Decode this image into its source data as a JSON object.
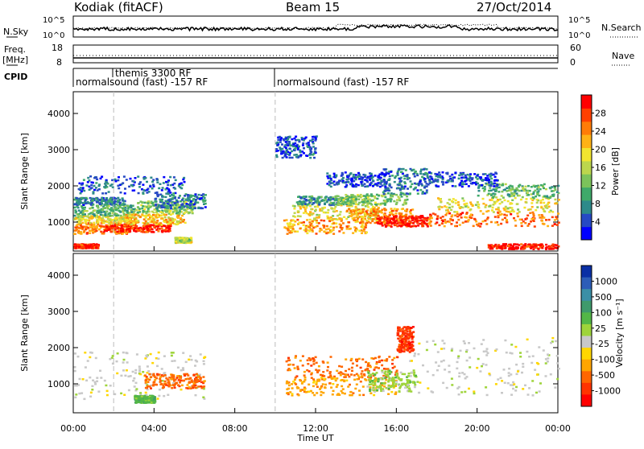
{
  "header": {
    "station": "Kodiak (fitACF)",
    "beam": "Beam 15",
    "date": "27/Oct/2014"
  },
  "nsky_panel": {
    "left_label": "N.Sky",
    "right_label": "N.Search",
    "left_ticks": [
      "10^5",
      "10^0"
    ],
    "right_ticks": [
      "10^5",
      "10^0"
    ]
  },
  "freq_panel": {
    "left_label_line1": "Freq.",
    "left_label_line2": "[MHz]",
    "right_label": "Nave",
    "left_ticks": [
      "18",
      "8"
    ],
    "right_ticks": [
      "60",
      "0"
    ],
    "left_range": [
      8,
      18
    ],
    "right_range": [
      0,
      60
    ]
  },
  "cpid_panel": {
    "label": "CPID",
    "segments": [
      {
        "start_hour": 0.0,
        "end_hour": 9.9,
        "text": "normalsound (fast) -157 RF"
      },
      {
        "start_hour": 2.0,
        "end_hour": 2.0,
        "text": "themis 3300 RF"
      },
      {
        "start_hour": 9.9,
        "end_hour": 24.0,
        "text": "normalsound (fast) -157 RF"
      }
    ]
  },
  "chart_data": [
    {
      "type": "heatmap",
      "name": "power",
      "ylabel": "Slant Range [km]",
      "xlabel": "",
      "xlim": [
        0,
        24
      ],
      "ylim": [
        200,
        4600
      ],
      "y_ticks": [
        "1000",
        "2000",
        "3000",
        "4000"
      ],
      "y_tick_values": [
        1000,
        2000,
        3000,
        4000
      ],
      "colorbar": {
        "label": "Power [dB]",
        "tick_labels": [
          "4",
          "8",
          "12",
          "16",
          "20",
          "24",
          "28"
        ],
        "tick_values": [
          4,
          8,
          12,
          16,
          20,
          24,
          28
        ],
        "range": [
          2,
          30
        ],
        "colors": [
          "#0000ff",
          "#2649c4",
          "#2d8a8a",
          "#3fa96a",
          "#7cc35b",
          "#bcd64d",
          "#f2e52f",
          "#ffb216",
          "#ff7c07",
          "#ff4000",
          "#ff0000"
        ]
      },
      "regions": [
        {
          "t": [
            0.0,
            1.2
          ],
          "r": [
            300,
            420
          ],
          "v": 28
        },
        {
          "t": [
            0.0,
            2.8
          ],
          "r": [
            700,
            1000
          ],
          "v": 24
        },
        {
          "t": [
            0.0,
            3.0
          ],
          "r": [
            1000,
            1200
          ],
          "v": 18
        },
        {
          "t": [
            0.0,
            3.0
          ],
          "r": [
            1200,
            1500
          ],
          "v": 12
        },
        {
          "t": [
            0.0,
            2.5
          ],
          "r": [
            1500,
            1700
          ],
          "v": 8
        },
        {
          "t": [
            1.5,
            4.8
          ],
          "r": [
            750,
            950
          ],
          "v": 28
        },
        {
          "t": [
            2.5,
            5.5
          ],
          "r": [
            950,
            1250
          ],
          "v": 20
        },
        {
          "t": [
            3.0,
            6.0
          ],
          "r": [
            1250,
            1600
          ],
          "v": 14
        },
        {
          "t": [
            4.0,
            6.5
          ],
          "r": [
            1400,
            1800
          ],
          "v": 8
        },
        {
          "t": [
            5.0,
            5.8
          ],
          "r": [
            450,
            600
          ],
          "v": 16
        },
        {
          "t": [
            0.2,
            5.5
          ],
          "r": [
            1800,
            2300
          ],
          "v": 6
        },
        {
          "t": [
            10.4,
            14.5
          ],
          "r": [
            700,
            1100
          ],
          "v": 22
        },
        {
          "t": [
            10.8,
            15.2
          ],
          "r": [
            1100,
            1500
          ],
          "v": 18
        },
        {
          "t": [
            11.0,
            14.0
          ],
          "r": [
            1500,
            1750
          ],
          "v": 10
        },
        {
          "t": [
            13.0,
            16.5
          ],
          "r": [
            1500,
            1800
          ],
          "v": 14
        },
        {
          "t": [
            13.5,
            16.8
          ],
          "r": [
            1000,
            1400
          ],
          "v": 22
        },
        {
          "t": [
            15.0,
            17.5
          ],
          "r": [
            900,
            1200
          ],
          "v": 28
        },
        {
          "t": [
            15.3,
            17.5
          ],
          "r": [
            1800,
            2500
          ],
          "v": 8
        },
        {
          "t": [
            17.5,
            24.0
          ],
          "r": [
            900,
            1300
          ],
          "v": 24
        },
        {
          "t": [
            18.0,
            24.0
          ],
          "r": [
            1300,
            1700
          ],
          "v": 18
        },
        {
          "t": [
            20.0,
            24.0
          ],
          "r": [
            1700,
            2100
          ],
          "v": 12
        },
        {
          "t": [
            20.5,
            24.0
          ],
          "r": [
            280,
            420
          ],
          "v": 28
        },
        {
          "t": [
            10.0,
            12.0
          ],
          "r": [
            2800,
            3400
          ],
          "v": 6
        },
        {
          "t": [
            12.5,
            15.5
          ],
          "r": [
            2000,
            2400
          ],
          "v": 6
        },
        {
          "t": [
            17.5,
            21.0
          ],
          "r": [
            2000,
            2400
          ],
          "v": 6
        }
      ]
    },
    {
      "type": "heatmap",
      "name": "velocity",
      "ylabel": "Slant Range [km]",
      "xlabel": "Time UT",
      "xlim": [
        0,
        24
      ],
      "ylim": [
        200,
        4600
      ],
      "x_ticks": [
        "00:00",
        "04:00",
        "08:00",
        "12:00",
        "16:00",
        "20:00",
        "00:00"
      ],
      "x_tick_values": [
        0,
        4,
        8,
        12,
        16,
        20,
        24
      ],
      "y_ticks": [
        "1000",
        "2000",
        "3000",
        "4000"
      ],
      "y_tick_values": [
        1000,
        2000,
        3000,
        4000
      ],
      "colorbar": {
        "label": "Velocity [m s⁻¹]",
        "tick_labels": [
          "1000",
          "500",
          "100",
          "25",
          "-25",
          "-100",
          "-500",
          "-1000"
        ],
        "tick_values": [
          1000,
          500,
          100,
          25,
          -25,
          -100,
          -500,
          -1000
        ],
        "colors": [
          "#0a2fa5",
          "#2d5db8",
          "#3b8fa6",
          "#3f9a6c",
          "#53b747",
          "#9ed43a",
          "#c8c8c8",
          "#ffd700",
          "#ffa500",
          "#ff6600",
          "#ff3300",
          "#ff0000"
        ]
      },
      "regions": [
        {
          "t": [
            0.0,
            6.5
          ],
          "r": [
            600,
            1900
          ],
          "c": 6
        },
        {
          "t": [
            3.5,
            6.5
          ],
          "r": [
            900,
            1300
          ],
          "c": 9
        },
        {
          "t": [
            3.0,
            4.0
          ],
          "r": [
            500,
            700
          ],
          "c": 4
        },
        {
          "t": [
            10.5,
            16.0
          ],
          "r": [
            1200,
            1800
          ],
          "c": 9
        },
        {
          "t": [
            10.5,
            16.0
          ],
          "r": [
            700,
            1200
          ],
          "c": 8
        },
        {
          "t": [
            14.5,
            17.0
          ],
          "r": [
            800,
            1400
          ],
          "c": 5
        },
        {
          "t": [
            16.5,
            24.0
          ],
          "r": [
            700,
            2300
          ],
          "c": 6
        },
        {
          "t": [
            16.0,
            16.8
          ],
          "r": [
            1900,
            2600
          ],
          "c": 10
        }
      ]
    }
  ]
}
